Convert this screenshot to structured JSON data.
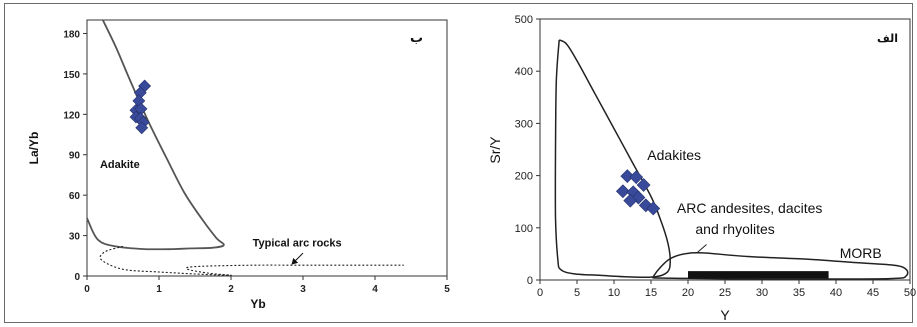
{
  "chart_data": [
    {
      "id": "b",
      "type": "scatter",
      "panel_label": "ب",
      "xlabel": "Yb",
      "ylabel": "La/Yb",
      "xlim": [
        0,
        5
      ],
      "ylim": [
        0,
        190
      ],
      "x_ticks": [
        "0",
        "1",
        "2",
        "3",
        "4",
        "5"
      ],
      "y_ticks": [
        "0",
        "30",
        "60",
        "90",
        "120",
        "150",
        "180"
      ],
      "points": [
        {
          "x": 0.8,
          "y": 141
        },
        {
          "x": 0.74,
          "y": 136
        },
        {
          "x": 0.72,
          "y": 130
        },
        {
          "x": 0.68,
          "y": 123
        },
        {
          "x": 0.75,
          "y": 124
        },
        {
          "x": 0.68,
          "y": 118
        },
        {
          "x": 0.74,
          "y": 117
        },
        {
          "x": 0.78,
          "y": 114
        },
        {
          "x": 0.76,
          "y": 110
        }
      ],
      "adakite_boundary": [
        [
          0.22,
          190
        ],
        [
          0.4,
          170
        ],
        [
          0.6,
          145
        ],
        [
          0.85,
          115
        ],
        [
          1.1,
          88
        ],
        [
          1.35,
          62
        ],
        [
          1.6,
          42
        ],
        [
          1.8,
          28
        ],
        [
          1.9,
          23
        ],
        [
          1.75,
          21
        ],
        [
          1.45,
          20.5
        ],
        [
          1.2,
          20
        ],
        [
          0.8,
          20
        ],
        [
          0.4,
          22
        ],
        [
          0.15,
          27
        ],
        [
          0,
          43
        ]
      ],
      "arc_boundary": [
        [
          0.5,
          22
        ],
        [
          0.25,
          18
        ],
        [
          0.2,
          12
        ],
        [
          0.5,
          5
        ],
        [
          1.0,
          3
        ],
        [
          1.5,
          1.5
        ],
        [
          2.0,
          0.5
        ],
        [
          1.7,
          2
        ],
        [
          1.4,
          5
        ],
        [
          1.5,
          7
        ],
        [
          2.3,
          8
        ],
        [
          3.0,
          8
        ],
        [
          3.6,
          8
        ],
        [
          4.4,
          8
        ]
      ],
      "annotations": [
        {
          "text": "Adakite",
          "x": 0.18,
          "y": 80
        },
        {
          "text": "Typical arc rocks",
          "x": 2.3,
          "y": 22
        }
      ],
      "arrow": {
        "from": [
          3.0,
          17
        ],
        "to": [
          2.85,
          9
        ]
      },
      "marker_color": "#3a4a9a"
    },
    {
      "id": "alef",
      "type": "scatter",
      "panel_label": "الف",
      "xlabel": "Y",
      "ylabel": "Sr/Y",
      "xlim": [
        0,
        50
      ],
      "ylim": [
        0,
        500
      ],
      "x_ticks": [
        "0",
        "5",
        "10",
        "15",
        "20",
        "25",
        "30",
        "35",
        "40",
        "45",
        "50"
      ],
      "y_ticks": [
        "0",
        "100",
        "200",
        "300",
        "400",
        "500"
      ],
      "points": [
        {
          "x": 11.8,
          "y": 199
        },
        {
          "x": 13.0,
          "y": 197
        },
        {
          "x": 14.0,
          "y": 182
        },
        {
          "x": 11.2,
          "y": 170
        },
        {
          "x": 12.6,
          "y": 168
        },
        {
          "x": 13.3,
          "y": 158
        },
        {
          "x": 12.2,
          "y": 152
        },
        {
          "x": 14.3,
          "y": 143
        },
        {
          "x": 15.3,
          "y": 137
        }
      ],
      "adakite_boundary": [
        [
          2.6,
          460
        ],
        [
          3.6,
          452
        ],
        [
          5,
          420
        ],
        [
          7.5,
          355
        ],
        [
          10,
          290
        ],
        [
          12.5,
          225
        ],
        [
          15,
          160
        ],
        [
          16.3,
          115
        ],
        [
          17.3,
          70
        ],
        [
          17.6,
          35
        ],
        [
          17.2,
          15
        ],
        [
          15.5,
          6
        ],
        [
          12,
          6
        ],
        [
          8,
          9
        ],
        [
          4.5,
          12
        ],
        [
          2.8,
          20
        ],
        [
          2.4,
          40
        ],
        [
          2.1,
          120
        ],
        [
          2.1,
          250
        ],
        [
          2.2,
          380
        ],
        [
          2.6,
          460
        ]
      ],
      "arc_boundary": [
        [
          15.2,
          4
        ],
        [
          16,
          20
        ],
        [
          17.5,
          40
        ],
        [
          19.5,
          50
        ],
        [
          22,
          52
        ],
        [
          28,
          45
        ],
        [
          36,
          40
        ],
        [
          43,
          33
        ],
        [
          48,
          28
        ],
        [
          49.5,
          20
        ],
        [
          49.5,
          8
        ],
        [
          48,
          3
        ],
        [
          40,
          2
        ],
        [
          30,
          2
        ],
        [
          20,
          3
        ],
        [
          15.2,
          4
        ]
      ],
      "morb_bar": {
        "x0": 20,
        "x1": 39,
        "y0": 3,
        "y1": 17
      },
      "annotations": [
        {
          "text": "Adakites",
          "x": 14.5,
          "y": 230
        },
        {
          "text": "ARC andesites, dacites",
          "x": 18.5,
          "y": 128
        },
        {
          "text": "and rhyolites",
          "x": 21,
          "y": 88
        },
        {
          "text": "MORB",
          "x": 40.5,
          "y": 42
        }
      ],
      "morb_pointer": {
        "from": [
          22.5,
          68
        ],
        "to": [
          21.2,
          52
        ]
      },
      "marker_color": "#3a4a9a"
    }
  ]
}
